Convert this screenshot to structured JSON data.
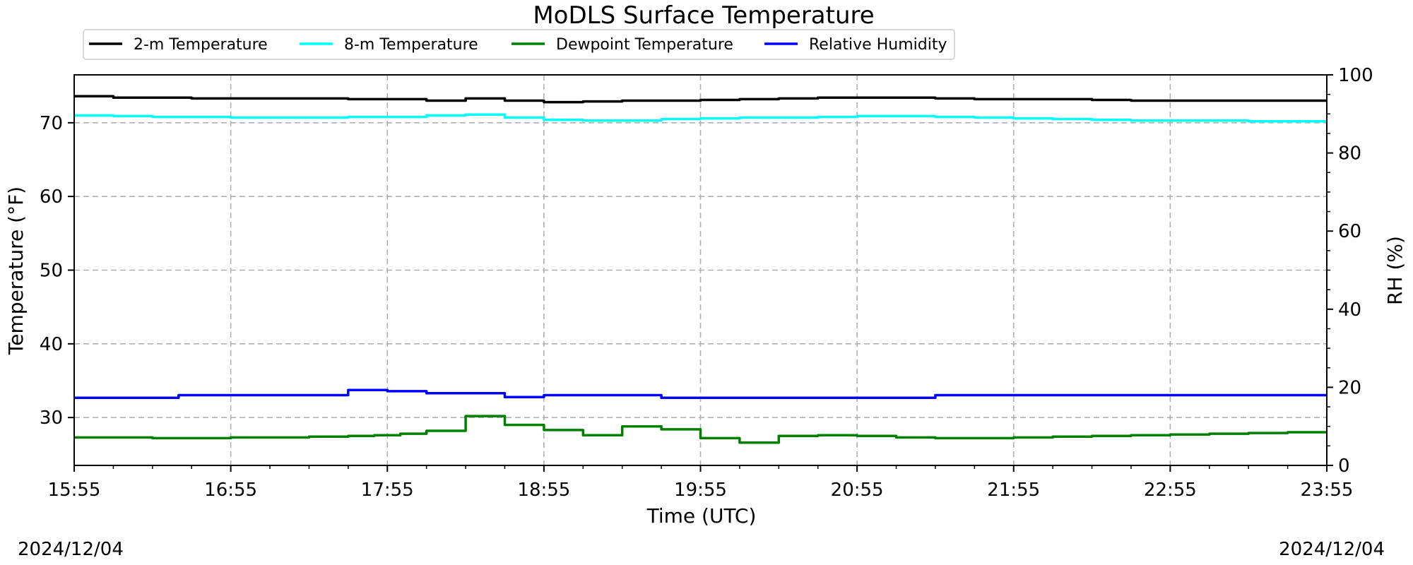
{
  "chart_data": {
    "type": "line",
    "title": "MoDLS Surface Temperature",
    "xlabel": "Time (UTC)",
    "ylabel": "Temperature (°F)",
    "y2label": "RH (%)",
    "xlim": [
      "15:55",
      "23:55"
    ],
    "ylim": [
      23.5,
      76.5
    ],
    "y2lim": [
      0,
      100
    ],
    "x_ticks": [
      "15:55",
      "16:55",
      "17:55",
      "18:55",
      "19:55",
      "20:55",
      "21:55",
      "22:55",
      "23:55"
    ],
    "y_ticks": [
      30,
      40,
      50,
      60,
      70
    ],
    "y2_ticks": [
      0,
      20,
      40,
      60,
      80,
      100
    ],
    "grid": true,
    "legend_position": "top-left",
    "date_left": "2024/12/04",
    "date_right": "2024/12/04",
    "series": [
      {
        "name": "2-m Temperature",
        "color": "#000000",
        "axis": "left",
        "x": [
          "15:55",
          "16:10",
          "16:25",
          "16:40",
          "16:55",
          "17:10",
          "17:25",
          "17:40",
          "17:55",
          "18:10",
          "18:25",
          "18:40",
          "18:55",
          "19:10",
          "19:25",
          "19:40",
          "19:55",
          "20:10",
          "20:25",
          "20:40",
          "20:55",
          "21:10",
          "21:25",
          "21:40",
          "21:55",
          "22:10",
          "22:25",
          "22:40",
          "22:55",
          "23:10",
          "23:25",
          "23:40",
          "23:55"
        ],
        "values": [
          73.6,
          73.4,
          73.4,
          73.3,
          73.3,
          73.3,
          73.3,
          73.2,
          73.2,
          73.0,
          73.3,
          73.0,
          72.8,
          72.9,
          73.0,
          73.0,
          73.1,
          73.2,
          73.3,
          73.4,
          73.4,
          73.4,
          73.3,
          73.2,
          73.2,
          73.2,
          73.1,
          73.0,
          73.0,
          73.0,
          73.0,
          73.0,
          72.9
        ]
      },
      {
        "name": "8-m Temperature",
        "color": "#00ffff",
        "axis": "left",
        "x": [
          "15:55",
          "16:10",
          "16:25",
          "16:40",
          "16:55",
          "17:10",
          "17:25",
          "17:40",
          "17:55",
          "18:10",
          "18:25",
          "18:40",
          "18:55",
          "19:10",
          "19:25",
          "19:40",
          "19:55",
          "20:10",
          "20:25",
          "20:40",
          "20:55",
          "21:10",
          "21:25",
          "21:40",
          "21:55",
          "22:10",
          "22:25",
          "22:40",
          "22:55",
          "23:10",
          "23:25",
          "23:40",
          "23:55"
        ],
        "values": [
          71.0,
          70.9,
          70.8,
          70.8,
          70.7,
          70.7,
          70.7,
          70.8,
          70.8,
          71.0,
          71.1,
          70.7,
          70.4,
          70.3,
          70.3,
          70.5,
          70.6,
          70.7,
          70.7,
          70.8,
          70.9,
          70.9,
          70.8,
          70.7,
          70.6,
          70.5,
          70.4,
          70.3,
          70.3,
          70.3,
          70.2,
          70.2,
          70.2
        ]
      },
      {
        "name": "Dewpoint Temperature",
        "color": "#008000",
        "axis": "left",
        "x": [
          "15:55",
          "16:10",
          "16:25",
          "16:40",
          "16:55",
          "17:10",
          "17:25",
          "17:40",
          "17:50",
          "17:55",
          "18:00",
          "18:10",
          "18:25",
          "18:40",
          "18:55",
          "19:10",
          "19:25",
          "19:40",
          "19:55",
          "20:10",
          "20:25",
          "20:40",
          "20:55",
          "21:10",
          "21:25",
          "21:40",
          "21:55",
          "22:10",
          "22:25",
          "22:40",
          "22:55",
          "23:10",
          "23:25",
          "23:40",
          "23:55"
        ],
        "values": [
          27.3,
          27.3,
          27.2,
          27.2,
          27.3,
          27.3,
          27.4,
          27.5,
          27.6,
          27.6,
          27.8,
          28.2,
          30.2,
          29.0,
          28.3,
          27.6,
          28.8,
          28.4,
          27.2,
          26.6,
          27.5,
          27.6,
          27.5,
          27.3,
          27.2,
          27.2,
          27.3,
          27.4,
          27.5,
          27.6,
          27.7,
          27.8,
          27.9,
          28.0,
          28.1
        ]
      },
      {
        "name": "Relative Humidity",
        "color": "#0000ff",
        "axis": "right",
        "x": [
          "15:55",
          "16:10",
          "16:20",
          "16:35",
          "16:55",
          "17:10",
          "17:25",
          "17:40",
          "17:55",
          "18:10",
          "18:25",
          "18:40",
          "18:55",
          "19:10",
          "19:25",
          "19:40",
          "19:55",
          "20:10",
          "20:25",
          "20:40",
          "20:55",
          "21:10",
          "21:25",
          "21:40",
          "21:55",
          "22:10",
          "22:25",
          "22:40",
          "22:55",
          "23:10",
          "23:25",
          "23:40",
          "23:55"
        ],
        "values": [
          17.3,
          17.3,
          17.3,
          18.0,
          18.0,
          18.0,
          18.0,
          19.3,
          19.0,
          18.5,
          18.5,
          17.5,
          18.0,
          18.0,
          18.0,
          17.3,
          17.3,
          17.3,
          17.3,
          17.3,
          17.3,
          17.3,
          18.0,
          18.0,
          18.0,
          18.0,
          18.0,
          18.0,
          18.0,
          18.0,
          18.0,
          18.0,
          18.0
        ]
      }
    ]
  }
}
